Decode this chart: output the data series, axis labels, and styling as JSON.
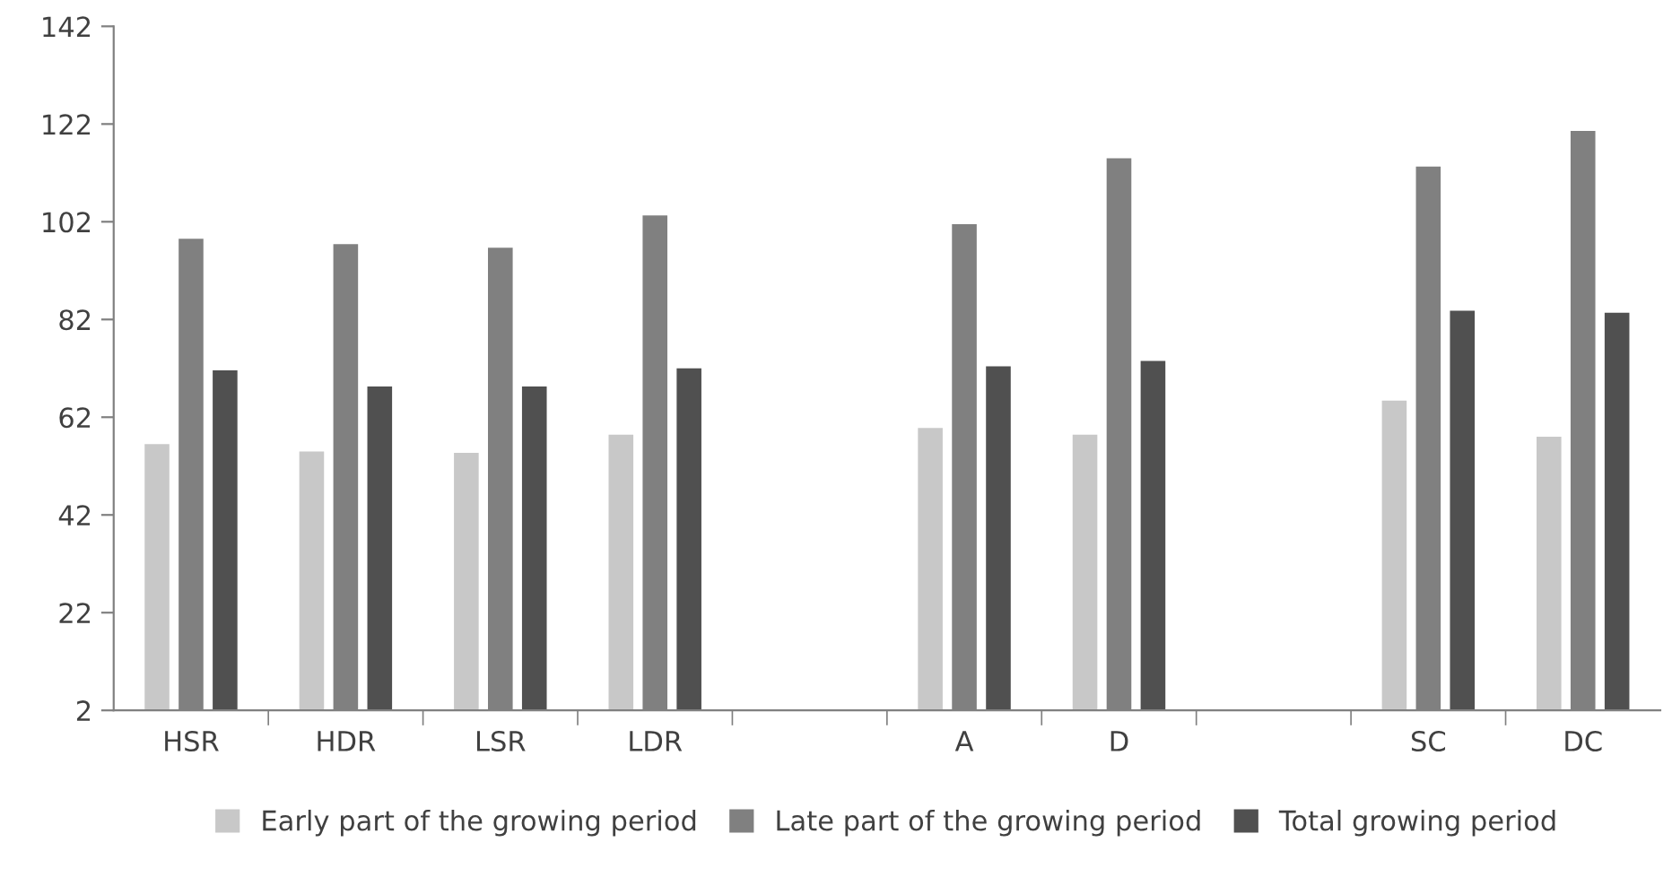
{
  "chart_data": {
    "type": "bar",
    "categories": [
      "HSR",
      "HDR",
      "LSR",
      "LDR",
      null,
      "A",
      "D",
      null,
      "SC",
      "DC"
    ],
    "series": [
      {
        "name": "Early part of the growing period",
        "color": "#c8c8c8",
        "values": [
          56.5,
          55,
          54.7,
          58.4,
          null,
          59.8,
          58.4,
          null,
          65.4,
          58
        ]
      },
      {
        "name": "Late part of the growing period",
        "color": "#808080",
        "values": [
          98.5,
          97.4,
          96.7,
          103.3,
          null,
          101.5,
          115,
          null,
          113.3,
          120.6
        ]
      },
      {
        "name": "Total growing period",
        "color": "#505050",
        "values": [
          71.6,
          68.3,
          68.3,
          72,
          null,
          72.4,
          73.5,
          null,
          83.8,
          83.4
        ]
      }
    ],
    "ylim": [
      2,
      142
    ],
    "yticks": [
      2,
      22,
      42,
      62,
      82,
      102,
      122,
      142
    ],
    "grid": false,
    "legend": "bottom"
  }
}
